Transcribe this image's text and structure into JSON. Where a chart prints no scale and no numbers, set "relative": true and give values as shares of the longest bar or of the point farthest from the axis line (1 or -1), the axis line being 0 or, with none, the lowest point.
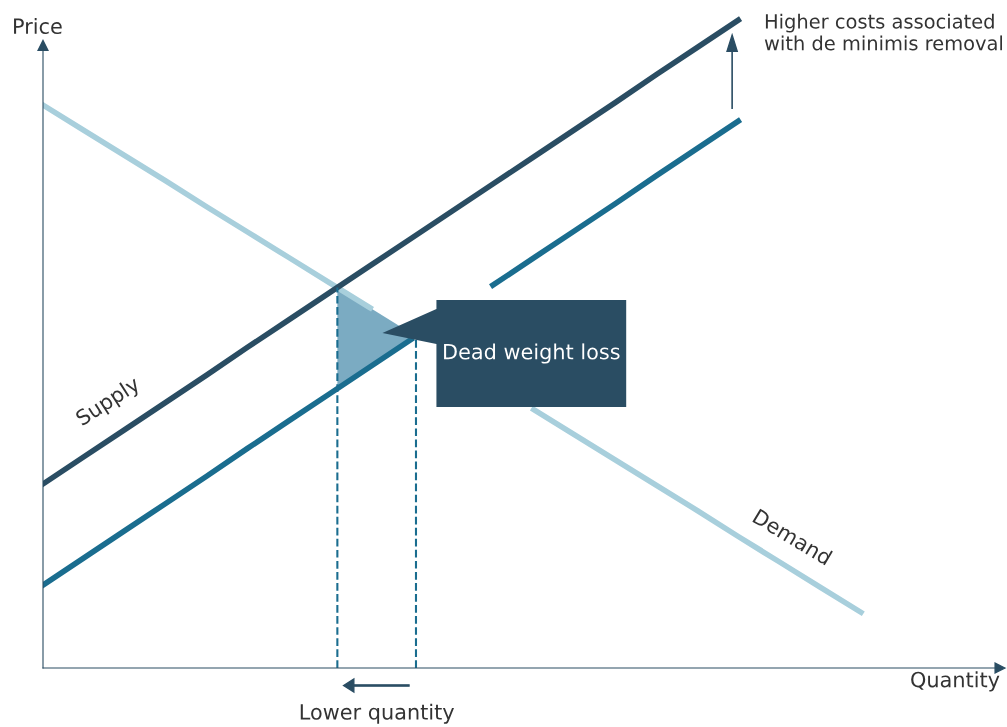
{
  "chart_data": {
    "type": "line",
    "relative": true,
    "xlabel": "Quantity",
    "ylabel": "Price",
    "grid": false,
    "legend": false,
    "marker": "none",
    "categories": [
      null,
      null,
      null,
      null,
      null,
      null,
      null,
      null,
      null,
      null,
      null,
      null,
      null,
      null,
      null,
      null,
      null,
      null,
      null,
      null,
      null
    ],
    "series": [
      {
        "name": "Demand",
        "color": "#a8cfdc",
        "values": [
          0.869,
          0.83,
          0.791,
          0.752,
          0.712,
          0.673,
          0.634,
          0.595,
          0.556,
          null,
          null,
          null,
          0.399,
          0.36,
          0.321,
          0.282,
          0.243,
          0.203,
          0.164,
          0.125,
          0.086
        ]
      },
      {
        "name": "Supply",
        "color": "#2a4d63",
        "values": [
          0.284,
          0.326,
          0.368,
          0.41,
          0.452,
          0.495,
          0.537,
          0.579,
          0.621,
          0.663,
          0.705,
          0.747,
          0.789,
          0.831,
          0.873,
          0.916,
          0.958,
          1.0,
          null,
          null,
          null
        ]
      },
      {
        "color": "#1a6d8f",
        "values": [
          0.128,
          0.17,
          0.212,
          0.254,
          0.296,
          0.339,
          0.381,
          0.423,
          0.465,
          0.507,
          null,
          0.591,
          0.633,
          0.675,
          0.717,
          0.76,
          0.802,
          0.844,
          null,
          null,
          null
        ]
      }
    ],
    "annotations": [
      "Higher costs associated with de minimis removal",
      "Dead weight loss",
      "Lower quantity"
    ]
  }
}
